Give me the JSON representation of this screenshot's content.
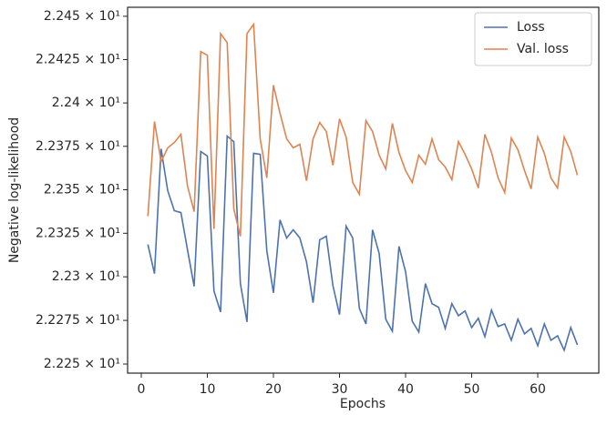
{
  "chart_data": {
    "type": "line",
    "xlabel": "Epochs",
    "ylabel": "Negative log-likelihood",
    "x": [
      1,
      2,
      3,
      4,
      5,
      6,
      7,
      8,
      9,
      10,
      11,
      12,
      13,
      14,
      15,
      16,
      17,
      18,
      19,
      20,
      21,
      22,
      23,
      24,
      25,
      26,
      27,
      28,
      29,
      30,
      31,
      32,
      33,
      34,
      35,
      36,
      37,
      38,
      39,
      40,
      41,
      42,
      43,
      44,
      45,
      46,
      47,
      48,
      49,
      50,
      51,
      52,
      53,
      54,
      55,
      56,
      57,
      58,
      59,
      60,
      61,
      62,
      63,
      64,
      65,
      66
    ],
    "series": [
      {
        "name": "Loss",
        "color": "#4c72b0",
        "values": [
          22.3186,
          22.3018,
          22.3736,
          22.3495,
          22.338,
          22.3369,
          22.3154,
          22.2945,
          22.372,
          22.3694,
          22.2919,
          22.2798,
          22.3809,
          22.3777,
          22.2961,
          22.2741,
          22.371,
          22.3704,
          22.3149,
          22.2908,
          22.3327,
          22.3223,
          22.327,
          22.3223,
          22.3086,
          22.2851,
          22.3212,
          22.3233,
          22.295,
          22.2783,
          22.3291,
          22.3223,
          22.2819,
          22.273,
          22.327,
          22.3134,
          22.2757,
          22.2688,
          22.3175,
          22.3029,
          22.2746,
          22.2683,
          22.2961,
          22.2846,
          22.2825,
          22.2704,
          22.2846,
          22.2777,
          22.2804,
          22.2709,
          22.2762,
          22.2657,
          22.2809,
          22.2715,
          22.273,
          22.2636,
          22.2757,
          22.2673,
          22.2704,
          22.2605,
          22.273,
          22.2636,
          22.2662,
          22.2579,
          22.2709,
          22.261
        ]
      },
      {
        "name": "Val. loss",
        "color": "#dd8452",
        "values": [
          22.3348,
          22.3893,
          22.3662,
          22.3741,
          22.3772,
          22.3819,
          22.3521,
          22.3374,
          22.4296,
          22.4275,
          22.3275,
          22.44,
          22.4348,
          22.339,
          22.3233,
          22.44,
          22.4453,
          22.3793,
          22.3568,
          22.4102,
          22.394,
          22.3793,
          22.3741,
          22.3762,
          22.3552,
          22.3793,
          22.3887,
          22.3835,
          22.3641,
          22.3908,
          22.3804,
          22.3542,
          22.3474,
          22.3898,
          22.3835,
          22.3699,
          22.362,
          22.3882,
          22.3715,
          22.361,
          22.3542,
          22.3699,
          22.3647,
          22.3793,
          22.3673,
          22.3631,
          22.3558,
          22.3777,
          22.3704,
          22.362,
          22.351,
          22.3819,
          22.3715,
          22.3568,
          22.3484,
          22.3798,
          22.373,
          22.361,
          22.3505,
          22.3804,
          22.3709,
          22.3568,
          22.351,
          22.3804,
          22.372,
          22.3584
        ]
      }
    ],
    "xlim": [
      -2.07,
      69.24
    ],
    "xticks": [
      0,
      10,
      20,
      30,
      40,
      50,
      60
    ],
    "ylim": [
      22.2448,
      22.4552
    ],
    "ylog": true,
    "yticks": [
      {
        "value": 22.25,
        "label": "2.225 × 10¹"
      },
      {
        "value": 22.275,
        "label": "2.2275 × 10¹"
      },
      {
        "value": 22.3,
        "label": "2.23 × 10¹"
      },
      {
        "value": 22.325,
        "label": "2.2325 × 10¹"
      },
      {
        "value": 22.35,
        "label": "2.235 × 10¹"
      },
      {
        "value": 22.375,
        "label": "2.2375 × 10¹"
      },
      {
        "value": 22.4,
        "label": "2.24 × 10¹"
      },
      {
        "value": 22.425,
        "label": "2.2425 × 10¹"
      },
      {
        "value": 22.45,
        "label": "2.245 × 10¹"
      }
    ],
    "legend": "upper right"
  }
}
